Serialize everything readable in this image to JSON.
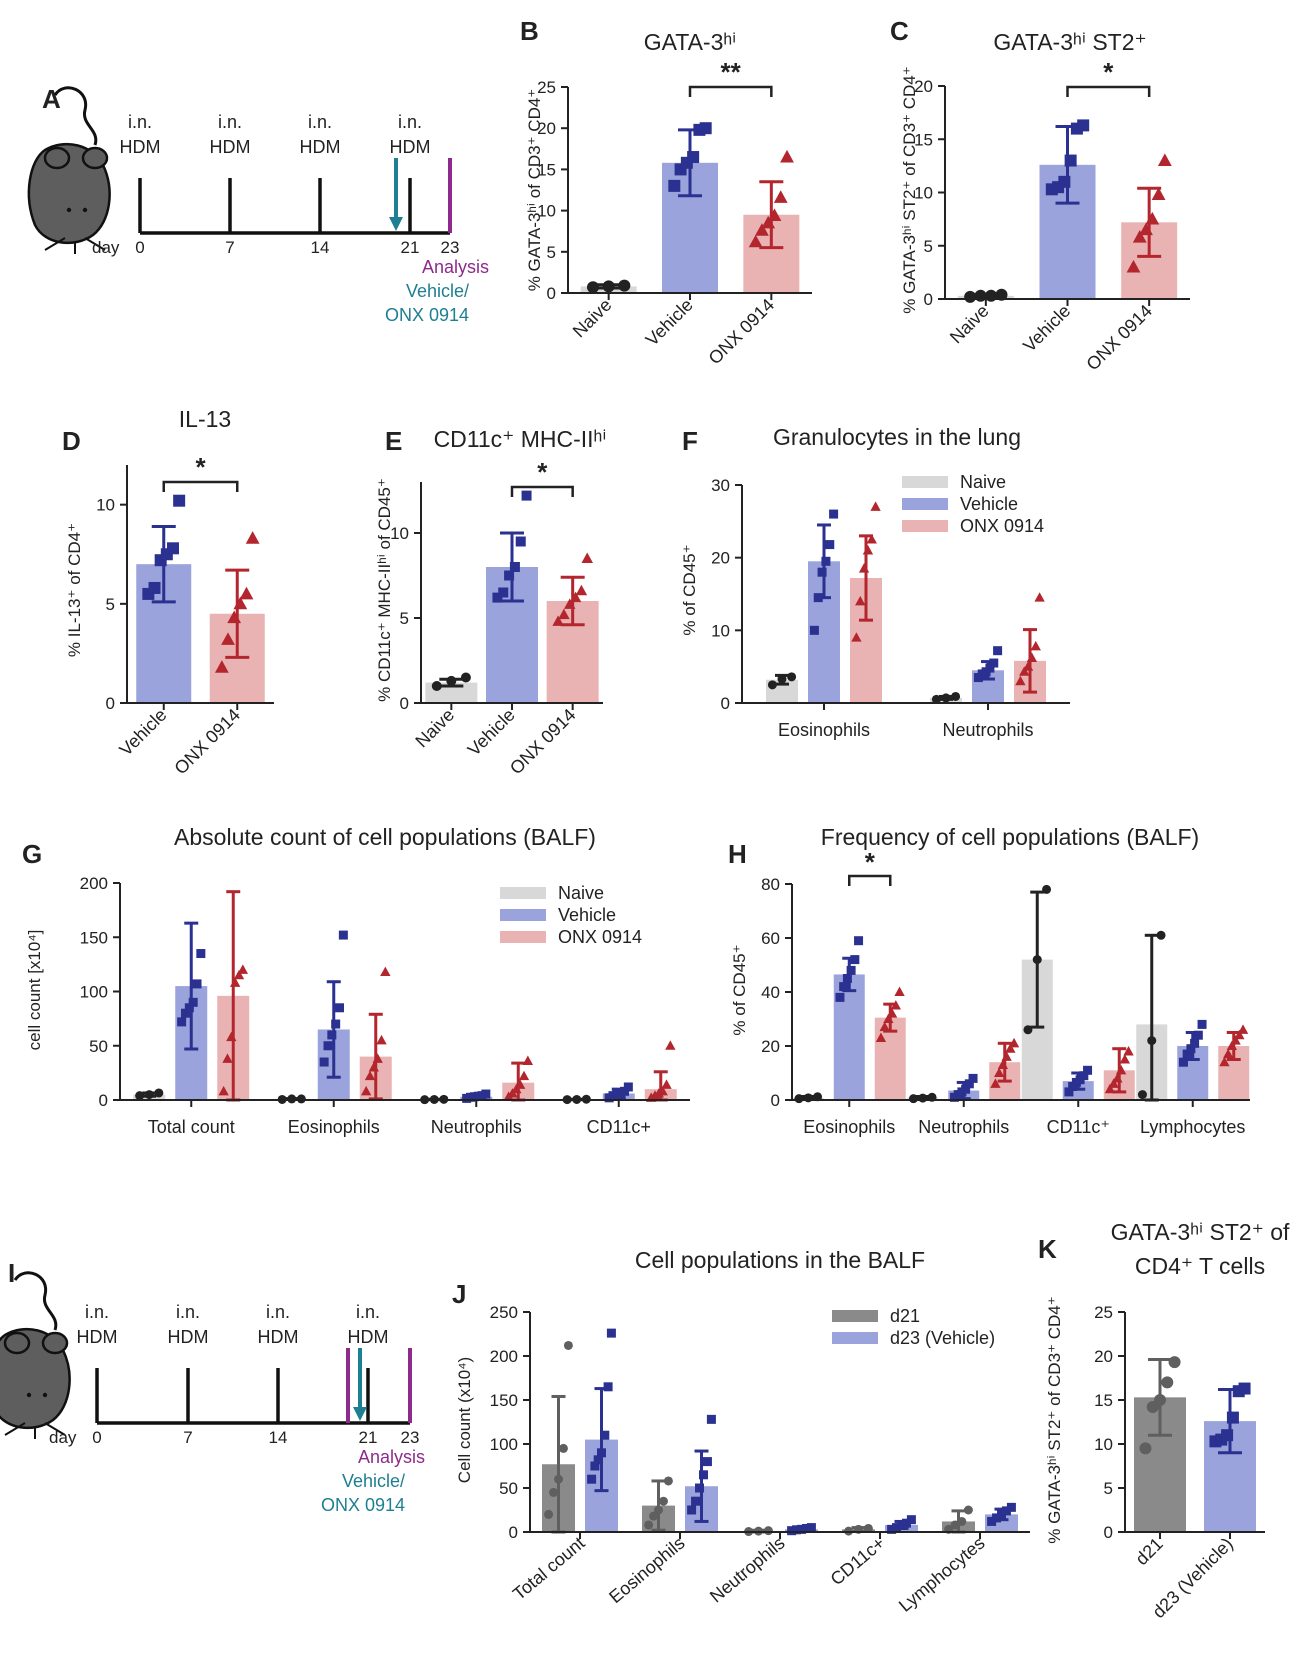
{
  "colors": {
    "naive_bar": "#d8d8d8",
    "naive_pt": "#222222",
    "vehicle_bar": "#9aa3dc",
    "vehicle_pt": "#2b3190",
    "onx_bar": "#eab3b3",
    "onx_pt": "#b3262e",
    "d21_bar": "#8a8a8a",
    "d21_pt": "#5f5f5f",
    "teal": "#1d7f91",
    "purple": "#8e2a8c"
  },
  "timelines": [
    {
      "panel": "A",
      "days": [
        "0",
        "7",
        "14",
        "21",
        "23"
      ],
      "dose_labels": [
        {
          "top": "i.n.",
          "bottom": "HDM"
        },
        {
          "top": "i.n.",
          "bottom": "HDM"
        },
        {
          "top": "i.n.",
          "bottom": "HDM"
        },
        {
          "top": "i.n.",
          "bottom": "HDM"
        }
      ],
      "day_word": "day",
      "analysis": "Analysis",
      "treatment_1": "Vehicle/",
      "treatment_2": "ONX 0914",
      "icons": [
        "mouse-icon",
        "teal-arrow-icon",
        "purple-marker-icon"
      ]
    },
    {
      "panel": "I",
      "days": [
        "0",
        "7",
        "14",
        "21",
        "23"
      ],
      "dose_labels": [
        {
          "top": "i.n.",
          "bottom": "HDM"
        },
        {
          "top": "i.n.",
          "bottom": "HDM"
        },
        {
          "top": "i.n.",
          "bottom": "HDM"
        },
        {
          "top": "i.n.",
          "bottom": "HDM"
        }
      ],
      "day_word": "day",
      "analysis": "Analysis",
      "treatment_1": "Vehicle/",
      "treatment_2": "ONX 0914",
      "icons": [
        "mouse-icon",
        "teal-arrow-icon",
        "purple-marker-icon"
      ]
    }
  ],
  "chart_data": [
    {
      "panel": "B",
      "type": "bar",
      "title": "GATA-3ʰⁱ",
      "ylabel": "% GATA-3ʰⁱ of CD3⁺ CD4⁺",
      "ylim": [
        0,
        25
      ],
      "yticks": [
        0,
        5,
        10,
        15,
        20,
        25
      ],
      "categories": [
        "Naive",
        "Vehicle",
        "ONX 0914"
      ],
      "groups": [
        "naive",
        "vehicle",
        "onx"
      ],
      "values": [
        0.8,
        15.8,
        9.5
      ],
      "errors": [
        0.2,
        4.0,
        4.0
      ],
      "points": [
        [
          0.7,
          0.8,
          0.9
        ],
        [
          13,
          15,
          15.8,
          16.5,
          19.8,
          20
        ],
        [
          6.2,
          7.6,
          8.5,
          9.4,
          11.6,
          16.5
        ]
      ],
      "significance": [
        {
          "from": 1,
          "to": 2,
          "label": "**"
        }
      ]
    },
    {
      "panel": "C",
      "type": "bar",
      "title": "GATA-3ʰⁱ ST2⁺",
      "ylabel": "% GATA-3ʰⁱ ST2⁺ of CD3⁺ CD4⁺",
      "ylim": [
        0,
        20
      ],
      "yticks": [
        0,
        5,
        10,
        15,
        20
      ],
      "categories": [
        "Naive",
        "Vehicle",
        "ONX 0914"
      ],
      "groups": [
        "naive",
        "vehicle",
        "onx"
      ],
      "values": [
        0.3,
        12.6,
        7.2
      ],
      "errors": [
        0.1,
        3.6,
        3.2
      ],
      "points": [
        [
          0.2,
          0.3,
          0.3,
          0.4
        ],
        [
          10.3,
          10.5,
          11,
          13,
          16,
          16.3
        ],
        [
          3,
          5.8,
          6.5,
          7.5,
          9.8,
          13
        ]
      ],
      "significance": [
        {
          "from": 1,
          "to": 2,
          "label": "*"
        }
      ]
    },
    {
      "panel": "D",
      "type": "bar",
      "title": "IL-13",
      "ylabel": "% IL-13⁺ of CD4⁺",
      "ylim": [
        0,
        12
      ],
      "yticks": [
        0,
        5,
        10
      ],
      "categories": [
        "Vehicle",
        "ONX 0914"
      ],
      "groups": [
        "vehicle",
        "onx"
      ],
      "values": [
        7.0,
        4.5
      ],
      "errors": [
        1.9,
        2.2
      ],
      "points": [
        [
          5.5,
          5.8,
          7.2,
          7.5,
          7.8,
          10.2
        ],
        [
          1.8,
          3.2,
          4.3,
          5,
          5.5,
          8.3
        ]
      ],
      "significance": [
        {
          "from": 0,
          "to": 1,
          "label": "*"
        }
      ]
    },
    {
      "panel": "E",
      "type": "bar",
      "title": "CD11c⁺ MHC-IIʰⁱ",
      "ylabel": "% CD11c⁺ MHC-IIʰⁱ of CD45⁺",
      "ylim": [
        0,
        13
      ],
      "yticks": [
        0,
        5,
        10
      ],
      "categories": [
        "Naive",
        "Vehicle",
        "ONX 0914"
      ],
      "groups": [
        "naive",
        "vehicle",
        "onx"
      ],
      "values": [
        1.2,
        8.0,
        6.0
      ],
      "errors": [
        0.2,
        2.0,
        1.4
      ],
      "points": [
        [
          1,
          1.3,
          1.5
        ],
        [
          6.2,
          6.5,
          7.5,
          8,
          9.5,
          12.2
        ],
        [
          4.8,
          5.2,
          5.8,
          6.2,
          6.6,
          8.5
        ]
      ],
      "significance": [
        {
          "from": 1,
          "to": 2,
          "label": "*"
        }
      ]
    },
    {
      "panel": "F",
      "type": "bar",
      "title": "Granulocytes in the lung",
      "ylabel": "% of CD45⁺",
      "ylim": [
        0,
        30
      ],
      "yticks": [
        0,
        10,
        20,
        30
      ],
      "categories": [
        "Eosinophils",
        "Neutrophils"
      ],
      "series": [
        {
          "name": "Naive",
          "group": "naive",
          "values": [
            3.2,
            0.7
          ],
          "errors": [
            0.6,
            0.2
          ],
          "points": [
            [
              2.5,
              3.3,
              3.6
            ],
            [
              0.5,
              0.7,
              0.9
            ]
          ]
        },
        {
          "name": "Vehicle",
          "group": "vehicle",
          "values": [
            19.5,
            4.5
          ],
          "errors": [
            5.0,
            1.2
          ],
          "points": [
            [
              10,
              14.5,
              18,
              19.5,
              21.8,
              26
            ],
            [
              3.5,
              4,
              4.3,
              4.8,
              5.5,
              7.2
            ]
          ]
        },
        {
          "name": "ONX 0914",
          "group": "onx",
          "values": [
            17.2,
            5.8
          ],
          "errors": [
            5.8,
            4.3
          ],
          "points": [
            [
              9,
              14,
              18.5,
              21,
              22.5,
              27
            ],
            [
              3,
              4.3,
              5,
              6.2,
              7.8,
              14.5
            ]
          ]
        }
      ],
      "legend": [
        "Naive",
        "Vehicle",
        "ONX 0914"
      ]
    },
    {
      "panel": "G",
      "type": "bar",
      "title": "Absolute count of cell populations (BALF)",
      "ylabel": "cell count [x10⁴]",
      "ylim": [
        0,
        200
      ],
      "yticks": [
        0,
        50,
        100,
        150,
        200
      ],
      "categories": [
        "Total count",
        "Eosinophils",
        "Neutrophils",
        "CD11c+"
      ],
      "series": [
        {
          "name": "Naive",
          "group": "naive",
          "values": [
            5,
            1,
            0.5,
            0.5
          ],
          "errors": [
            1.5,
            0.3,
            0.2,
            0.2
          ],
          "points": [
            [
              4,
              5,
              6.5
            ],
            [
              0.5,
              1,
              1
            ],
            [
              0.3,
              0.5,
              0.6
            ],
            [
              0.4,
              0.5,
              0.7
            ]
          ]
        },
        {
          "name": "Vehicle",
          "group": "vehicle",
          "values": [
            105,
            65,
            3,
            6
          ],
          "errors": [
            58,
            44,
            2,
            4
          ],
          "points": [
            [
              72,
              80,
              85,
              90,
              107,
              135
            ],
            [
              35,
              50,
              60,
              70,
              85,
              152
            ],
            [
              1.5,
              2.5,
              3,
              3.5,
              4,
              5.5
            ],
            [
              2,
              4,
              5,
              6.5,
              8,
              12
            ]
          ]
        },
        {
          "name": "ONX 0914",
          "group": "onx",
          "values": [
            96,
            40,
            16,
            10
          ],
          "errors": [
            96,
            39,
            18,
            16
          ],
          "points": [
            [
              8,
              38,
              58,
              108,
              115,
              120
            ],
            [
              8,
              22,
              30,
              38,
              55,
              118
            ],
            [
              3,
              6,
              10,
              14,
              22,
              36
            ],
            [
              2,
              4,
              6,
              8,
              14,
              50
            ]
          ]
        }
      ],
      "legend": [
        "Naive",
        "Vehicle",
        "ONX 0914"
      ]
    },
    {
      "panel": "H",
      "type": "bar",
      "title": "Frequency of cell populations (BALF)",
      "ylabel": "% of CD45⁺",
      "ylim": [
        0,
        80
      ],
      "yticks": [
        0,
        20,
        40,
        60,
        80
      ],
      "categories": [
        "Eosinophils",
        "Neutrophils",
        "CD11c⁺",
        "Lymphocytes"
      ],
      "series": [
        {
          "name": "Naive",
          "group": "naive",
          "values": [
            0.8,
            0.8,
            52,
            28
          ],
          "errors": [
            0.5,
            0.5,
            25,
            33
          ],
          "points": [
            [
              0.5,
              0.8,
              1.2
            ],
            [
              0.5,
              0.7,
              1
            ],
            [
              26,
              52,
              78
            ],
            [
              2,
              22,
              61
            ]
          ]
        },
        {
          "name": "Vehicle",
          "group": "vehicle",
          "values": [
            46.5,
            3.5,
            7,
            20
          ],
          "errors": [
            6,
            3,
            3,
            5
          ],
          "points": [
            [
              38,
              42,
              45,
              48,
              52,
              59
            ],
            [
              1,
              2,
              3,
              4,
              6,
              8
            ],
            [
              3,
              5,
              6.5,
              7.5,
              9,
              11
            ],
            [
              14,
              17,
              19,
              21,
              24,
              28
            ]
          ]
        },
        {
          "name": "ONX 0914",
          "group": "onx",
          "values": [
            30.5,
            14,
            11,
            20
          ],
          "errors": [
            5,
            7,
            8,
            5
          ],
          "points": [
            [
              23,
              27,
              30,
              32,
              35,
              40
            ],
            [
              6,
              10,
              13,
              16,
              19,
              21
            ],
            [
              4,
              6,
              8,
              11,
              15,
              18
            ],
            [
              14,
              17,
              20,
              22,
              24,
              26
            ]
          ]
        }
      ],
      "significance": [
        {
          "category": 0,
          "from": 1,
          "to": 2,
          "label": "*"
        }
      ]
    },
    {
      "panel": "J",
      "type": "bar",
      "title": "Cell populations in the BALF",
      "ylabel": "Cell count (x10⁴)",
      "ylim": [
        0,
        250
      ],
      "yticks": [
        0,
        50,
        100,
        150,
        200,
        250
      ],
      "categories": [
        "Total count",
        "Eosinophils",
        "Neutrophils",
        "CD11c+",
        "Lymphocytes"
      ],
      "series": [
        {
          "name": "d21",
          "group": "d21",
          "values": [
            77,
            30,
            1,
            3,
            12
          ],
          "errors": [
            77,
            28,
            1,
            2,
            12
          ],
          "points": [
            [
              20,
              45,
              60,
              95,
              212
            ],
            [
              8,
              18,
              25,
              35,
              58
            ],
            [
              0.5,
              1,
              1.5
            ],
            [
              1,
              3,
              4
            ],
            [
              3,
              8,
              12,
              25
            ]
          ]
        },
        {
          "name": "d23 (Vehicle)",
          "group": "vehicle",
          "values": [
            105,
            52,
            3,
            8,
            20
          ],
          "errors": [
            58,
            40,
            2,
            4,
            6
          ],
          "points": [
            [
              60,
              75,
              82,
              90,
              110,
              165,
              226
            ],
            [
              25,
              35,
              50,
              65,
              80,
              128
            ],
            [
              1.5,
              2.5,
              3,
              4,
              5
            ],
            [
              3,
              5,
              8,
              10,
              14
            ],
            [
              12,
              16,
              20,
              24,
              28
            ]
          ]
        }
      ],
      "legend": [
        "d21",
        "d23 (Vehicle)"
      ]
    },
    {
      "panel": "K",
      "type": "bar",
      "title": "GATA-3ʰⁱ ST2⁺ of",
      "title2": "CD4⁺ T cells",
      "ylabel": "% GATA-3ʰⁱ ST2⁺ of CD3⁺ CD4⁺",
      "ylim": [
        0,
        25
      ],
      "yticks": [
        0,
        5,
        10,
        15,
        20,
        25
      ],
      "categories": [
        "d21",
        "d23 (Vehicle)"
      ],
      "groups": [
        "d21",
        "vehicle"
      ],
      "values": [
        15.3,
        12.6
      ],
      "errors": [
        4.3,
        3.6
      ],
      "points": [
        [
          9.5,
          14.2,
          15,
          17,
          19.3
        ],
        [
          10.3,
          10.5,
          11,
          13,
          16,
          16.3
        ]
      ]
    }
  ]
}
